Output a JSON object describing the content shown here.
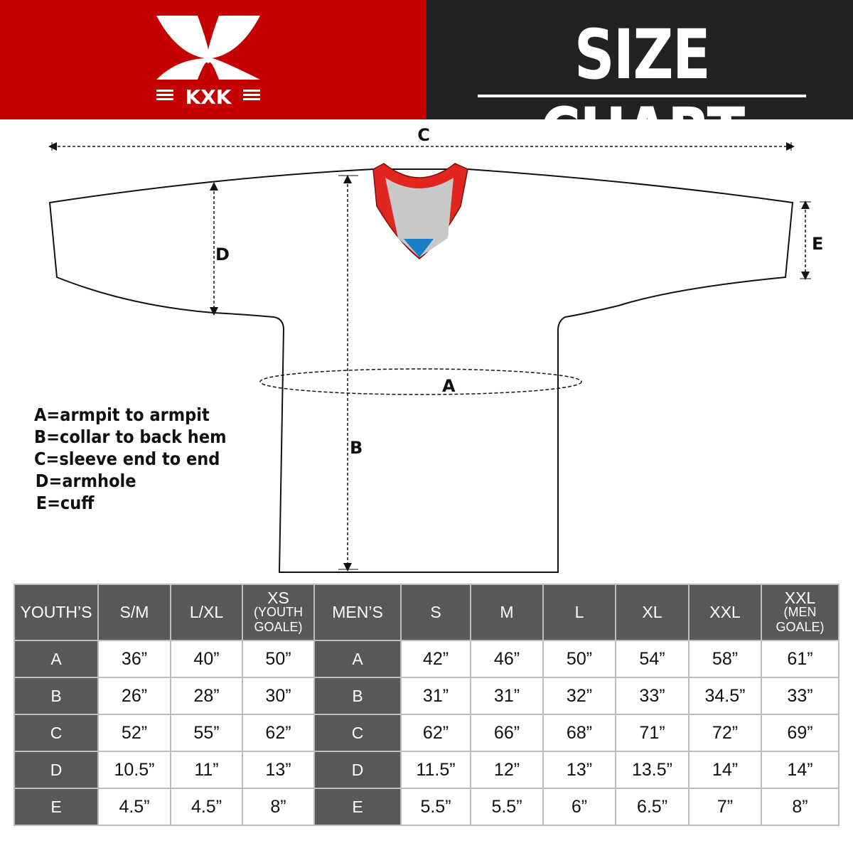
{
  "brand": {
    "logo_text": "KXK",
    "red": "#c40000",
    "dark": "#222222"
  },
  "header": {
    "title": "SIZE CHART"
  },
  "diagram": {
    "labels": {
      "a": "A",
      "b": "B",
      "c": "C",
      "d": "D",
      "e": "E"
    },
    "colors": {
      "collar_trim": "#e0261f",
      "collar_inner": "#c8c8c8",
      "collar_tip": "#1a7fc4"
    }
  },
  "legend": [
    "A=armpit to armpit",
    "B=collar to back hem",
    "C=sleeve end to end",
    "D=armhole",
    "E=cuff"
  ],
  "table": {
    "youth_header": "YOUTH’S",
    "youth_sizes": [
      {
        "main": "S/M"
      },
      {
        "main": "L/XL"
      },
      {
        "main": "XS",
        "sub": "(YOUTH GOALE)"
      }
    ],
    "men_header": "MEN’S",
    "men_sizes": [
      {
        "main": "S"
      },
      {
        "main": "M"
      },
      {
        "main": "L"
      },
      {
        "main": "XL"
      },
      {
        "main": "XXL"
      },
      {
        "main": "XXL",
        "sub": "(MEN GOALE)"
      }
    ],
    "rows": [
      {
        "label": "A",
        "youth": [
          "36”",
          "40”",
          "50”"
        ],
        "men": [
          "42”",
          "46”",
          "50”",
          "54”",
          "58”",
          "61”"
        ]
      },
      {
        "label": "B",
        "youth": [
          "26”",
          "28”",
          "30”"
        ],
        "men": [
          "31”",
          "31”",
          "32”",
          "33”",
          "34.5”",
          "33”"
        ]
      },
      {
        "label": "C",
        "youth": [
          "52”",
          "55”",
          "62”"
        ],
        "men": [
          "62”",
          "66”",
          "68”",
          "71”",
          "72”",
          "69”"
        ]
      },
      {
        "label": "D",
        "youth": [
          "10.5”",
          "11”",
          "13”"
        ],
        "men": [
          "11.5”",
          "12”",
          "13”",
          "13.5”",
          "14”",
          "14”"
        ]
      },
      {
        "label": "E",
        "youth": [
          "4.5”",
          "4.5”",
          "8”"
        ],
        "men": [
          "5.5”",
          "5.5”",
          "6”",
          "6.5”",
          "7”",
          "8”"
        ]
      }
    ]
  }
}
